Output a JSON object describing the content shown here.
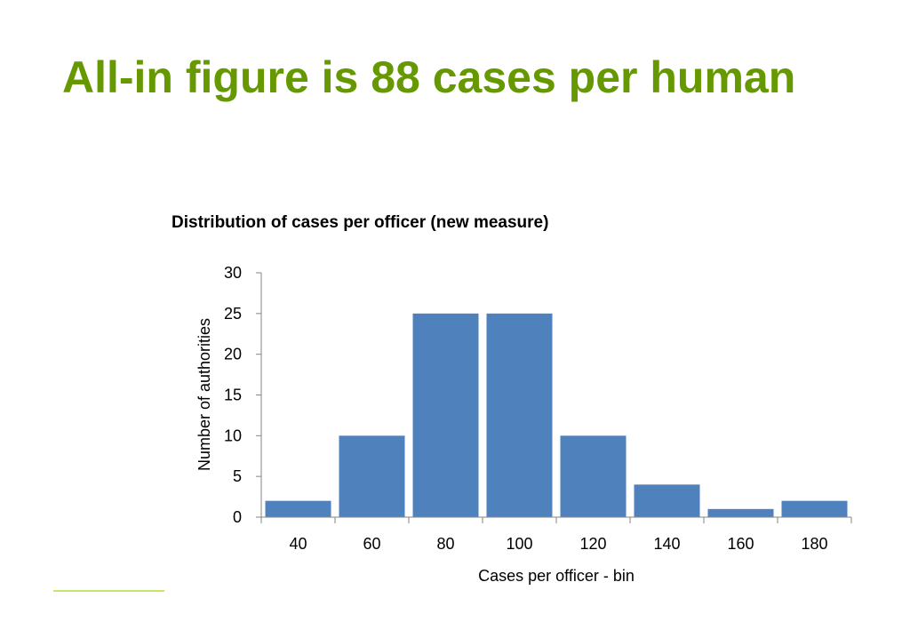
{
  "slide": {
    "title": "All-in figure is 88 cases per human"
  },
  "colors": {
    "title": "#669900",
    "bar": "#4f81bd",
    "axis": "#868686",
    "text": "#000000",
    "accent_rule": "#c8e66e"
  },
  "chart_data": {
    "type": "bar",
    "title": "Distribution of cases per officer (new measure)",
    "xlabel": "Cases per officer - bin",
    "ylabel": "Number of authorities",
    "categories": [
      "40",
      "60",
      "80",
      "100",
      "120",
      "140",
      "160",
      "180"
    ],
    "values": [
      2,
      10,
      25,
      25,
      10,
      4,
      1,
      2
    ],
    "ylim": [
      0,
      30
    ],
    "yticks": [
      0,
      5,
      10,
      15,
      20,
      25,
      30
    ],
    "grid": false,
    "legend": "none"
  }
}
